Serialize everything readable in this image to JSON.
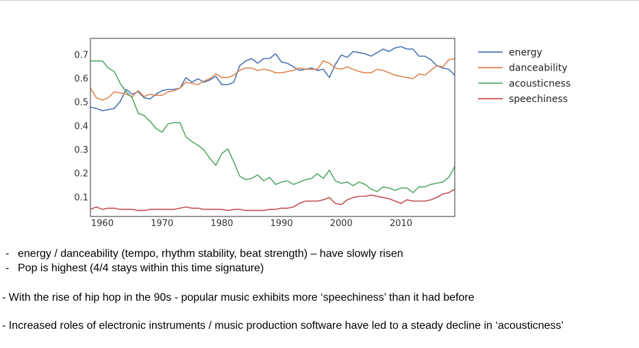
{
  "chart_data": {
    "type": "line",
    "title": "",
    "xlabel": "",
    "ylabel": "",
    "xlim": [
      1958,
      2019
    ],
    "ylim": [
      0.02,
      0.77
    ],
    "x_ticks": [
      1960,
      1970,
      1980,
      1990,
      2000,
      2010
    ],
    "y_ticks": [
      0.1,
      0.2,
      0.3,
      0.4,
      0.5,
      0.6,
      0.7
    ],
    "grid": false,
    "legend_position": "outside-right",
    "series": [
      {
        "name": "energy",
        "color": "#4c72b0",
        "points": [
          [
            1958,
            0.48
          ],
          [
            1959,
            0.475
          ],
          [
            1960,
            0.465
          ],
          [
            1961,
            0.47
          ],
          [
            1962,
            0.475
          ],
          [
            1963,
            0.505
          ],
          [
            1964,
            0.555
          ],
          [
            1965,
            0.535
          ],
          [
            1966,
            0.545
          ],
          [
            1967,
            0.52
          ],
          [
            1968,
            0.515
          ],
          [
            1969,
            0.535
          ],
          [
            1970,
            0.55
          ],
          [
            1971,
            0.555
          ],
          [
            1972,
            0.555
          ],
          [
            1973,
            0.56
          ],
          [
            1974,
            0.605
          ],
          [
            1975,
            0.585
          ],
          [
            1976,
            0.6
          ],
          [
            1977,
            0.585
          ],
          [
            1978,
            0.595
          ],
          [
            1979,
            0.61
          ],
          [
            1980,
            0.575
          ],
          [
            1981,
            0.575
          ],
          [
            1982,
            0.585
          ],
          [
            1983,
            0.655
          ],
          [
            1984,
            0.675
          ],
          [
            1985,
            0.685
          ],
          [
            1986,
            0.665
          ],
          [
            1987,
            0.685
          ],
          [
            1988,
            0.685
          ],
          [
            1989,
            0.705
          ],
          [
            1990,
            0.67
          ],
          [
            1991,
            0.665
          ],
          [
            1992,
            0.65
          ],
          [
            1993,
            0.635
          ],
          [
            1994,
            0.64
          ],
          [
            1995,
            0.645
          ],
          [
            1996,
            0.635
          ],
          [
            1997,
            0.64
          ],
          [
            1998,
            0.605
          ],
          [
            1999,
            0.66
          ],
          [
            2000,
            0.7
          ],
          [
            2001,
            0.69
          ],
          [
            2002,
            0.715
          ],
          [
            2003,
            0.71
          ],
          [
            2004,
            0.705
          ],
          [
            2005,
            0.695
          ],
          [
            2006,
            0.71
          ],
          [
            2007,
            0.725
          ],
          [
            2008,
            0.715
          ],
          [
            2009,
            0.73
          ],
          [
            2010,
            0.735
          ],
          [
            2011,
            0.725
          ],
          [
            2012,
            0.725
          ],
          [
            2013,
            0.695
          ],
          [
            2014,
            0.695
          ],
          [
            2015,
            0.68
          ],
          [
            2016,
            0.655
          ],
          [
            2017,
            0.645
          ],
          [
            2018,
            0.64
          ],
          [
            2019,
            0.615
          ]
        ]
      },
      {
        "name": "danceability",
        "color": "#dd8452",
        "points": [
          [
            1958,
            0.56
          ],
          [
            1959,
            0.52
          ],
          [
            1960,
            0.51
          ],
          [
            1961,
            0.52
          ],
          [
            1962,
            0.545
          ],
          [
            1963,
            0.54
          ],
          [
            1964,
            0.535
          ],
          [
            1965,
            0.525
          ],
          [
            1966,
            0.55
          ],
          [
            1967,
            0.525
          ],
          [
            1968,
            0.535
          ],
          [
            1969,
            0.53
          ],
          [
            1970,
            0.53
          ],
          [
            1971,
            0.545
          ],
          [
            1972,
            0.55
          ],
          [
            1973,
            0.56
          ],
          [
            1974,
            0.585
          ],
          [
            1975,
            0.58
          ],
          [
            1976,
            0.575
          ],
          [
            1977,
            0.59
          ],
          [
            1978,
            0.6
          ],
          [
            1979,
            0.62
          ],
          [
            1980,
            0.605
          ],
          [
            1981,
            0.605
          ],
          [
            1982,
            0.615
          ],
          [
            1983,
            0.635
          ],
          [
            1984,
            0.645
          ],
          [
            1985,
            0.645
          ],
          [
            1986,
            0.635
          ],
          [
            1987,
            0.64
          ],
          [
            1988,
            0.635
          ],
          [
            1989,
            0.625
          ],
          [
            1990,
            0.625
          ],
          [
            1991,
            0.63
          ],
          [
            1992,
            0.635
          ],
          [
            1993,
            0.645
          ],
          [
            1994,
            0.64
          ],
          [
            1995,
            0.64
          ],
          [
            1996,
            0.64
          ],
          [
            1997,
            0.675
          ],
          [
            1998,
            0.665
          ],
          [
            1999,
            0.645
          ],
          [
            2000,
            0.64
          ],
          [
            2001,
            0.65
          ],
          [
            2002,
            0.64
          ],
          [
            2003,
            0.63
          ],
          [
            2004,
            0.625
          ],
          [
            2005,
            0.625
          ],
          [
            2006,
            0.64
          ],
          [
            2007,
            0.635
          ],
          [
            2008,
            0.625
          ],
          [
            2009,
            0.615
          ],
          [
            2010,
            0.61
          ],
          [
            2011,
            0.605
          ],
          [
            2012,
            0.6
          ],
          [
            2013,
            0.62
          ],
          [
            2014,
            0.615
          ],
          [
            2015,
            0.635
          ],
          [
            2016,
            0.655
          ],
          [
            2017,
            0.65
          ],
          [
            2018,
            0.68
          ],
          [
            2019,
            0.685
          ]
        ]
      },
      {
        "name": "acousticness",
        "color": "#55a868",
        "points": [
          [
            1958,
            0.675
          ],
          [
            1959,
            0.675
          ],
          [
            1960,
            0.675
          ],
          [
            1961,
            0.645
          ],
          [
            1962,
            0.63
          ],
          [
            1963,
            0.58
          ],
          [
            1964,
            0.545
          ],
          [
            1965,
            0.52
          ],
          [
            1966,
            0.455
          ],
          [
            1967,
            0.445
          ],
          [
            1968,
            0.42
          ],
          [
            1969,
            0.39
          ],
          [
            1970,
            0.375
          ],
          [
            1971,
            0.41
          ],
          [
            1972,
            0.415
          ],
          [
            1973,
            0.415
          ],
          [
            1974,
            0.355
          ],
          [
            1975,
            0.335
          ],
          [
            1976,
            0.32
          ],
          [
            1977,
            0.3
          ],
          [
            1978,
            0.265
          ],
          [
            1979,
            0.235
          ],
          [
            1980,
            0.285
          ],
          [
            1981,
            0.305
          ],
          [
            1982,
            0.25
          ],
          [
            1983,
            0.19
          ],
          [
            1984,
            0.175
          ],
          [
            1985,
            0.18
          ],
          [
            1986,
            0.195
          ],
          [
            1987,
            0.17
          ],
          [
            1988,
            0.185
          ],
          [
            1989,
            0.155
          ],
          [
            1990,
            0.165
          ],
          [
            1991,
            0.17
          ],
          [
            1992,
            0.155
          ],
          [
            1993,
            0.165
          ],
          [
            1994,
            0.175
          ],
          [
            1995,
            0.18
          ],
          [
            1996,
            0.2
          ],
          [
            1997,
            0.18
          ],
          [
            1998,
            0.215
          ],
          [
            1999,
            0.17
          ],
          [
            2000,
            0.16
          ],
          [
            2001,
            0.165
          ],
          [
            2002,
            0.15
          ],
          [
            2003,
            0.165
          ],
          [
            2004,
            0.155
          ],
          [
            2005,
            0.135
          ],
          [
            2006,
            0.125
          ],
          [
            2007,
            0.145
          ],
          [
            2008,
            0.14
          ],
          [
            2009,
            0.13
          ],
          [
            2010,
            0.14
          ],
          [
            2011,
            0.14
          ],
          [
            2012,
            0.12
          ],
          [
            2013,
            0.145
          ],
          [
            2014,
            0.145
          ],
          [
            2015,
            0.155
          ],
          [
            2016,
            0.16
          ],
          [
            2017,
            0.165
          ],
          [
            2018,
            0.185
          ],
          [
            2019,
            0.23
          ]
        ]
      },
      {
        "name": "speechiness",
        "color": "#c44e52",
        "points": [
          [
            1958,
            0.05
          ],
          [
            1959,
            0.06
          ],
          [
            1960,
            0.05
          ],
          [
            1961,
            0.055
          ],
          [
            1962,
            0.055
          ],
          [
            1963,
            0.05
          ],
          [
            1964,
            0.05
          ],
          [
            1965,
            0.05
          ],
          [
            1966,
            0.045
          ],
          [
            1967,
            0.045
          ],
          [
            1968,
            0.05
          ],
          [
            1969,
            0.05
          ],
          [
            1970,
            0.05
          ],
          [
            1971,
            0.05
          ],
          [
            1972,
            0.05
          ],
          [
            1973,
            0.055
          ],
          [
            1974,
            0.06
          ],
          [
            1975,
            0.055
          ],
          [
            1976,
            0.055
          ],
          [
            1977,
            0.05
          ],
          [
            1978,
            0.05
          ],
          [
            1979,
            0.05
          ],
          [
            1980,
            0.05
          ],
          [
            1981,
            0.045
          ],
          [
            1982,
            0.05
          ],
          [
            1983,
            0.05
          ],
          [
            1984,
            0.045
          ],
          [
            1985,
            0.045
          ],
          [
            1986,
            0.045
          ],
          [
            1987,
            0.045
          ],
          [
            1988,
            0.05
          ],
          [
            1989,
            0.05
          ],
          [
            1990,
            0.055
          ],
          [
            1991,
            0.055
          ],
          [
            1992,
            0.06
          ],
          [
            1993,
            0.075
          ],
          [
            1994,
            0.085
          ],
          [
            1995,
            0.085
          ],
          [
            1996,
            0.085
          ],
          [
            1997,
            0.09
          ],
          [
            1998,
            0.1
          ],
          [
            1999,
            0.075
          ],
          [
            2000,
            0.07
          ],
          [
            2001,
            0.09
          ],
          [
            2002,
            0.1
          ],
          [
            2003,
            0.105
          ],
          [
            2004,
            0.105
          ],
          [
            2005,
            0.11
          ],
          [
            2006,
            0.105
          ],
          [
            2007,
            0.1
          ],
          [
            2008,
            0.095
          ],
          [
            2009,
            0.085
          ],
          [
            2010,
            0.075
          ],
          [
            2011,
            0.09
          ],
          [
            2012,
            0.085
          ],
          [
            2013,
            0.085
          ],
          [
            2014,
            0.085
          ],
          [
            2015,
            0.09
          ],
          [
            2016,
            0.1
          ],
          [
            2017,
            0.115
          ],
          [
            2018,
            0.12
          ],
          [
            2019,
            0.135
          ]
        ]
      }
    ]
  },
  "bullets": {
    "b1": "energy / danceability (tempo, rhythm stability, beat strength) – have slowly risen",
    "b2": "Pop is highest (4/4 stays within this time signature)",
    "b3": "With the rise of hip hop in the 90s - popular music exhibits more ‘speechiness’ than it had before",
    "b4": "Increased roles of electronic instruments / music production software have led to a steady decline in ‘acousticness’"
  },
  "marker": "-"
}
